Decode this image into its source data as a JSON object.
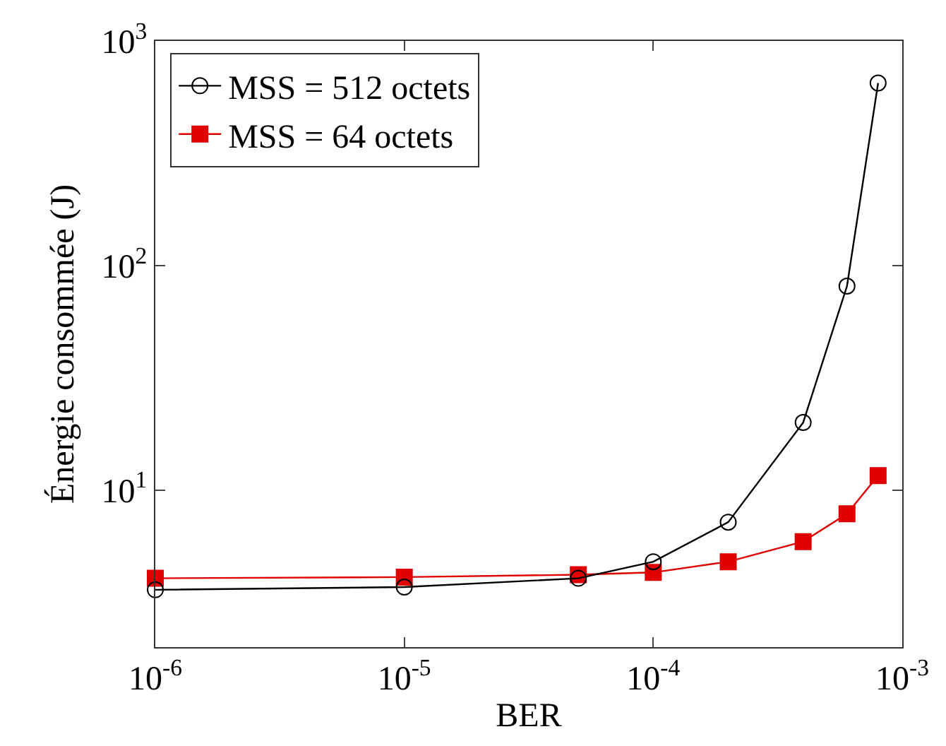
{
  "chart_data": {
    "type": "line",
    "xlabel": "BER",
    "ylabel": "Énergie consommée (J)",
    "log": "xy",
    "grid": false,
    "legend": "top left",
    "xlim": [
      1e-06,
      0.001
    ],
    "xticks": [
      {
        "value": 1e-06,
        "label": "10$^{-6}$"
      },
      {
        "value": 1e-05,
        "label": "10$^{-5}$"
      },
      {
        "value": 0.0001,
        "label": "10$^{-4}$"
      },
      {
        "value": 0.001,
        "label": "10$^{-3}$"
      }
    ],
    "ylim": [
      2,
      1000
    ],
    "yticks": [
      {
        "value": 10,
        "label": "10$^{1}$"
      },
      {
        "value": 100,
        "label": "10$^{2}$"
      },
      {
        "value": 1000,
        "label": "10$^{3}$"
      }
    ],
    "x": [
      1e-06,
      1e-05,
      5e-05,
      0.0001,
      0.0002,
      0.0004,
      0.0006,
      0.0008
    ],
    "series": [
      {
        "name": "MSS = 512 octets",
        "color": "#000000",
        "marker": "circle",
        "values": [
          3.6,
          3.7,
          4.05,
          4.8,
          7.2,
          20,
          81,
          650
        ]
      },
      {
        "name": "MSS = 64 octets",
        "color": "#e00000",
        "marker": "square",
        "values": [
          4.05,
          4.1,
          4.2,
          4.3,
          4.8,
          5.9,
          7.85,
          11.6
        ]
      }
    ]
  }
}
